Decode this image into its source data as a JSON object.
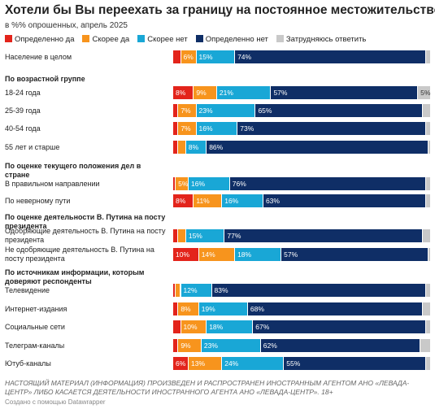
{
  "chart_data": {
    "type": "stacked_bar",
    "title": "Хотели бы Вы переехать за границу на постоянное местожительство?",
    "subtitle": "в %% опрошенных, апрель 2025",
    "xlim": [
      0,
      100
    ],
    "categories": [
      "Население в целом",
      "По возрастной группе",
      "18-24 года",
      "25-39 года",
      "40-54 года",
      "55 лет и старше",
      "По оценке текущего положения дел в стране",
      "В правильном направлении",
      "По неверному пути",
      "По оценке деятельности В. Путина на посту президента",
      "Одобряющие деятельность В. Путина на посту президента",
      "Не одобряющие деятельность В. Путина на посту президента",
      "По источникам информации, которым доверяют респонденты",
      "Телевидение",
      "Интернет-издания",
      "Социальные сети",
      "Телеграм-каналы",
      "Ютуб-каналы"
    ],
    "series": [
      {
        "name": "Определенно да",
        "color": "#e3241b",
        "values": [
          3,
          null,
          8,
          2,
          2,
          2,
          null,
          1,
          8,
          null,
          2,
          10,
          null,
          1,
          2,
          3,
          2,
          6
        ],
        "value_labels": [
          null,
          null,
          "8%",
          null,
          null,
          null,
          null,
          null,
          "8%",
          null,
          null,
          "10%",
          null,
          null,
          null,
          null,
          null,
          "6%"
        ]
      },
      {
        "name": "Скорее да",
        "color": "#f7941d",
        "values": [
          6,
          null,
          9,
          7,
          7,
          3,
          null,
          5,
          11,
          null,
          3,
          14,
          null,
          2,
          8,
          10,
          9,
          13
        ],
        "value_labels": [
          "6%",
          null,
          "9%",
          "7%",
          "7%",
          null,
          null,
          "5%",
          "11%",
          null,
          null,
          "14%",
          null,
          null,
          "8%",
          "10%",
          "9%",
          "13%"
        ]
      },
      {
        "name": "Скорее нет",
        "color": "#19a7d6",
        "values": [
          15,
          null,
          21,
          23,
          16,
          8,
          null,
          16,
          16,
          null,
          15,
          18,
          null,
          12,
          19,
          18,
          23,
          24
        ],
        "value_labels": [
          "15%",
          null,
          "21%",
          "23%",
          "16%",
          "8%",
          null,
          "16%",
          "16%",
          null,
          "15%",
          "18%",
          null,
          "12%",
          "19%",
          "18%",
          "23%",
          "24%"
        ]
      },
      {
        "name": "Определенно нет",
        "color": "#0f2e66",
        "values": [
          74,
          null,
          57,
          65,
          73,
          86,
          null,
          76,
          63,
          null,
          77,
          57,
          null,
          83,
          68,
          67,
          62,
          55
        ],
        "value_labels": [
          "74%",
          null,
          "57%",
          "65%",
          "73%",
          "86%",
          null,
          "76%",
          "63%",
          null,
          "77%",
          "57%",
          null,
          "83%",
          "68%",
          "67%",
          "62%",
          "55%"
        ]
      },
      {
        "name": "Затрудняюсь ответить",
        "color": "#c9c9c9",
        "values": [
          2,
          null,
          5,
          3,
          2,
          1,
          null,
          2,
          2,
          null,
          3,
          1,
          null,
          2,
          3,
          2,
          4,
          2
        ],
        "value_labels": [
          null,
          null,
          "5%",
          null,
          null,
          null,
          null,
          null,
          null,
          null,
          null,
          null,
          null,
          null,
          null,
          null,
          null,
          null
        ]
      }
    ],
    "note": "НАСТОЯЩИЙ МАТЕРИАЛ (ИНФОРМАЦИЯ) ПРОИЗВЕДЕН И РАСПРОСТРАНЕН ИНОСТРАННЫМ АГЕНТОМ АНО «ЛЕВАДА-ЦЕНТР» ЛИБО КАСАЕТСЯ ДЕЯТЕЛЬНОСТИ ИНОСТРАННОГО АГЕНТА АНО «ЛЕВАДА-ЦЕНТР». 18+",
    "credit": "Создано с помощью Datawrapper"
  }
}
